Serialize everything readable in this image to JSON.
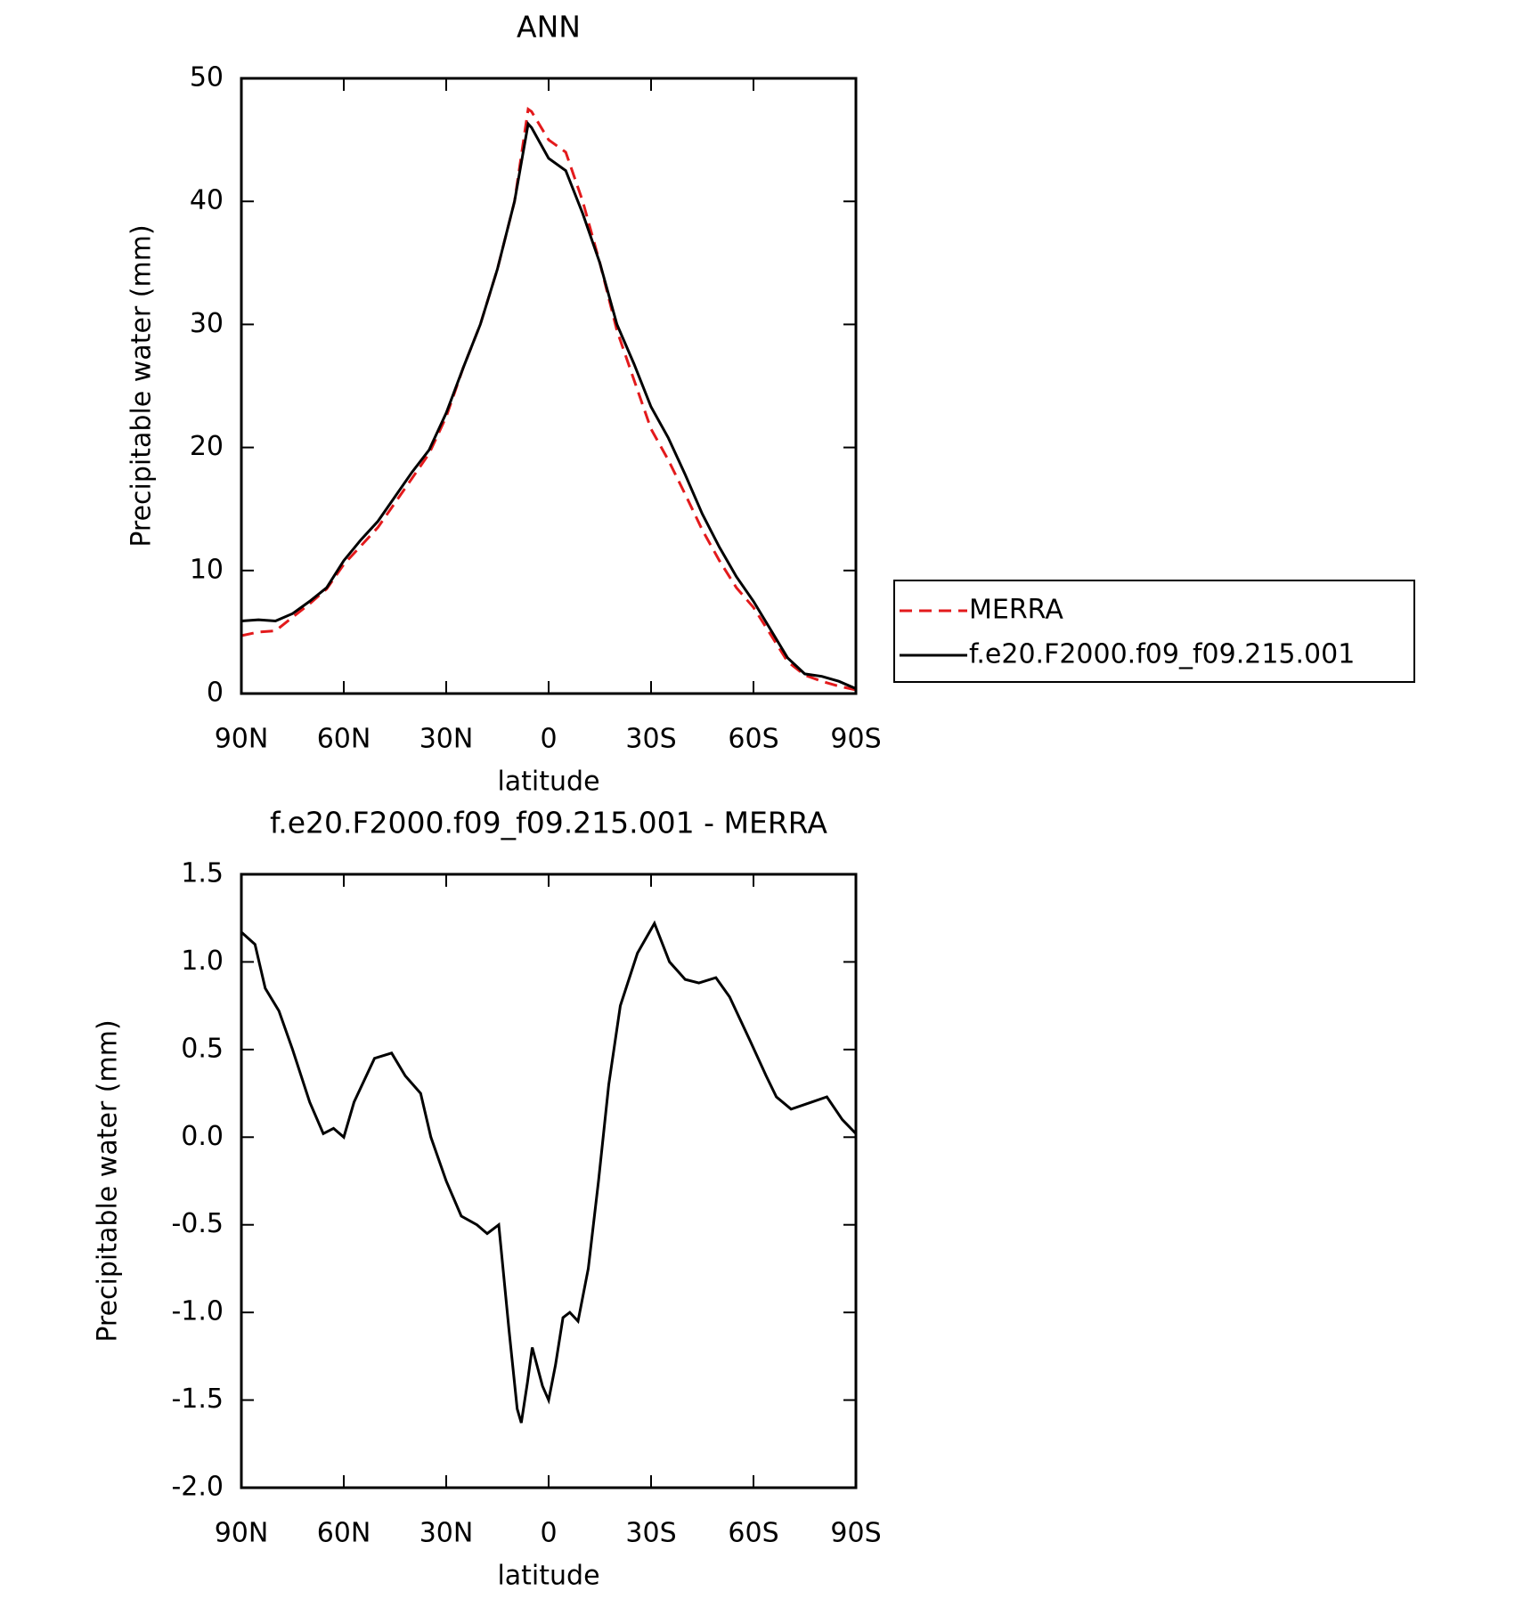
{
  "chart_data": [
    {
      "type": "line",
      "title": "ANN",
      "xlabel": "latitude",
      "ylabel": "Precipitable water (mm)",
      "x": [
        90,
        85,
        80,
        75,
        70,
        65,
        60,
        55,
        50,
        45,
        40,
        35,
        30,
        25,
        20,
        15,
        10,
        6,
        5,
        0,
        -5,
        -10,
        -15,
        -20,
        -25,
        -30,
        -35,
        -40,
        -45,
        -50,
        -55,
        -60,
        -65,
        -70,
        -75,
        -80,
        -85,
        -90
      ],
      "series": [
        {
          "name": "MERRA",
          "color": "#e31a1c",
          "dash": "dashed",
          "values": [
            4.7,
            5.0,
            5.1,
            6.2,
            7.3,
            8.5,
            10.5,
            12.0,
            13.5,
            15.5,
            17.5,
            19.5,
            22.5,
            26.5,
            30,
            34.5,
            40,
            47.5,
            47.3,
            45,
            44,
            40,
            35,
            29.5,
            25.5,
            21.5,
            19.0,
            16.2,
            13.3,
            10.8,
            8.6,
            7.0,
            4.8,
            2.6,
            1.5,
            1.0,
            0.6,
            0.3
          ]
        },
        {
          "name": "f.e20.F2000.f09_f09.215.001",
          "color": "#000000",
          "dash": "solid",
          "values": [
            5.9,
            6.0,
            5.9,
            6.5,
            7.5,
            8.6,
            10.8,
            12.5,
            14.0,
            16.0,
            18.0,
            19.8,
            22.8,
            26.5,
            30,
            34.5,
            40,
            46.3,
            46.0,
            43.5,
            42.5,
            39,
            35,
            30,
            26.8,
            23.3,
            20.8,
            17.8,
            14.6,
            11.9,
            9.5,
            7.5,
            5.2,
            2.9,
            1.6,
            1.4,
            1.0,
            0.4
          ]
        }
      ],
      "xlim": [
        90,
        -90
      ],
      "xticks": [
        {
          "value": 90,
          "label": "90N"
        },
        {
          "value": 60,
          "label": "60N"
        },
        {
          "value": 30,
          "label": "30N"
        },
        0,
        {
          "value": -30,
          "label": "30S"
        },
        {
          "value": -60,
          "label": "60S"
        },
        {
          "value": -90,
          "label": "90S"
        }
      ],
      "ylim": [
        0,
        50
      ],
      "yticks": [
        0,
        10,
        20,
        30,
        40,
        50
      ],
      "legend": true
    },
    {
      "type": "line",
      "title": "f.e20.F2000.f09_f09.215.001 - MERRA",
      "xlabel": "latitude",
      "ylabel": "Precipitable water (mm)",
      "x": [
        90,
        86,
        83,
        79,
        75,
        70,
        66,
        63,
        60,
        57,
        51,
        46,
        42,
        37.5,
        34.5,
        30,
        25.6,
        21,
        18,
        14.6,
        11.6,
        9.2,
        8,
        6.2,
        4.8,
        1.8,
        0,
        -2,
        -4.2,
        -6.2,
        -8.6,
        -11.6,
        -14.6,
        -17.6,
        -21,
        -26,
        -31,
        -35.4,
        -40,
        -44,
        -49,
        -53,
        -59,
        -63.7,
        -66.7,
        -71,
        -77,
        -81.5,
        -86,
        -90
      ],
      "series": [
        {
          "color": "#000000",
          "dash": "solid",
          "values": [
            1.17,
            1.1,
            0.85,
            0.72,
            0.5,
            0.2,
            0.02,
            0.05,
            0.0,
            0.2,
            0.45,
            0.48,
            0.35,
            0.25,
            0.0,
            -0.25,
            -0.45,
            -0.5,
            -0.55,
            -0.5,
            -1.1,
            -1.55,
            -1.63,
            -1.4,
            -1.2,
            -1.42,
            -1.5,
            -1.3,
            -1.03,
            -1.0,
            -1.05,
            -0.75,
            -0.25,
            0.3,
            0.75,
            1.05,
            1.22,
            1.0,
            0.9,
            0.88,
            0.91,
            0.8,
            0.55,
            0.35,
            0.23,
            0.16,
            0.2,
            0.23,
            0.1,
            0.02
          ]
        }
      ],
      "xlim": [
        90,
        -90
      ],
      "xticks": [
        {
          "value": 90,
          "label": "90N"
        },
        {
          "value": 60,
          "label": "60N"
        },
        {
          "value": 30,
          "label": "30N"
        },
        0,
        {
          "value": -30,
          "label": "30S"
        },
        {
          "value": -60,
          "label": "60S"
        },
        {
          "value": -90,
          "label": "90S"
        }
      ],
      "ylim": [
        -2,
        1.5
      ],
      "yticks": [
        {
          "value": -2,
          "label": "-2.0"
        },
        -1.5,
        {
          "value": -1,
          "label": "-1.0"
        },
        -0.5,
        {
          "value": 0,
          "label": "0.0"
        },
        0.5,
        {
          "value": 1,
          "label": "1.0"
        },
        1.5
      ]
    }
  ]
}
